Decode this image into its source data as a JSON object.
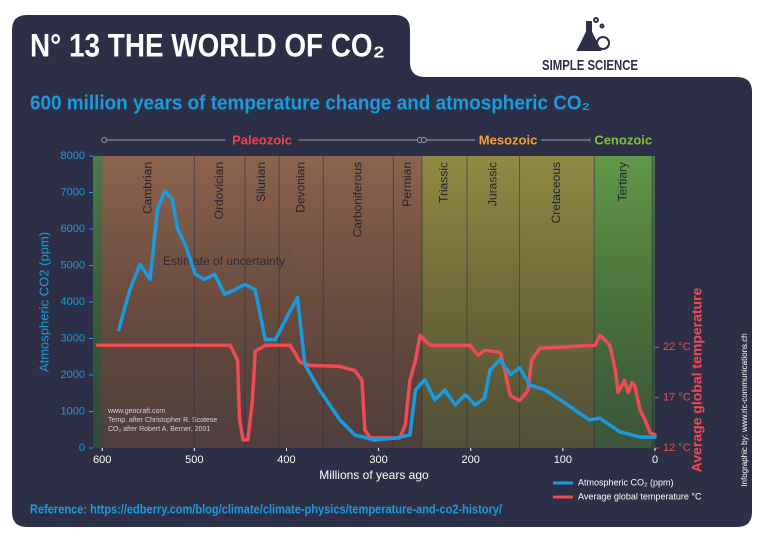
{
  "chart_data": {
    "type": "line",
    "title": "N° 13  THE WORLD OF CO₂",
    "subtitle": "600 million years of temperature change and atmospheric CO₂",
    "brand": "SIMPLE SCIENCE",
    "xlabel": "Millions of years ago",
    "ylabel": "Atmospheric CO2 (ppm)",
    "y2label": "Average global temperature",
    "xlim": [
      610,
      0
    ],
    "xticks": [
      600,
      500,
      400,
      300,
      200,
      100,
      0
    ],
    "ylim": [
      0,
      8000
    ],
    "yticks": [
      0,
      1000,
      2000,
      3000,
      4000,
      5000,
      6000,
      7000,
      8000
    ],
    "y2lim": [
      12,
      41
    ],
    "y2ticks": [
      {
        "value": 12,
        "label": "12 °C"
      },
      {
        "value": 17,
        "label": "17 °C"
      },
      {
        "value": 22,
        "label": "22 °C"
      }
    ],
    "eras": [
      {
        "name": "Paleozoic",
        "start": 600,
        "end": 253,
        "color": "#e8454f"
      },
      {
        "name": "Mesozoic",
        "start": 253,
        "end": 66,
        "color": "#f2a23a"
      },
      {
        "name": "Cenozoic",
        "start": 66,
        "end": 3,
        "color": "#7fc242"
      }
    ],
    "periods": [
      {
        "name": "Cambrian",
        "start": 600,
        "end": 500
      },
      {
        "name": "Ordovician",
        "start": 500,
        "end": 445
      },
      {
        "name": "Silurian",
        "start": 445,
        "end": 408
      },
      {
        "name": "Devonian",
        "start": 408,
        "end": 360
      },
      {
        "name": "Carboniferous",
        "start": 360,
        "end": 284
      },
      {
        "name": "Permian",
        "start": 284,
        "end": 253
      },
      {
        "name": "Triassic",
        "start": 253,
        "end": 204
      },
      {
        "name": "Jurassic",
        "start": 204,
        "end": 147
      },
      {
        "name": "Cretaceous",
        "start": 147,
        "end": 66
      },
      {
        "name": "Tertiary",
        "start": 66,
        "end": 3
      }
    ],
    "series": [
      {
        "name": "Atmospheric CO₂ (ppm)",
        "color": "#1a9be0",
        "x": [
          582,
          570,
          559,
          548,
          540,
          532,
          524,
          518,
          510,
          499,
          489,
          478,
          467,
          456,
          445,
          434,
          423,
          412,
          401,
          388,
          380,
          364,
          342,
          326,
          304,
          282,
          266,
          260,
          250,
          239,
          228,
          217,
          206,
          195,
          185,
          179,
          168,
          157,
          147,
          136,
          119,
          103,
          87,
          71,
          60,
          38,
          16,
          0
        ],
        "values": [
          3240,
          4340,
          5030,
          4620,
          6540,
          7040,
          6820,
          5990,
          5580,
          4760,
          4620,
          4760,
          4210,
          4340,
          4480,
          4340,
          2970,
          2970,
          3520,
          4120,
          2280,
          1590,
          770,
          360,
          220,
          270,
          360,
          1590,
          1870,
          1320,
          1590,
          1180,
          1460,
          1180,
          1370,
          2140,
          2420,
          2010,
          2200,
          1730,
          1590,
          1320,
          1040,
          770,
          820,
          440,
          300,
          300
        ]
      },
      {
        "name": "Average global temperature °C",
        "color": "#ee4b55",
        "axis": "y2",
        "x": [
          605,
          461,
          453,
          451,
          447,
          442,
          437,
          434,
          423,
          396,
          385,
          374,
          342,
          326,
          318,
          315,
          309,
          277,
          271,
          266,
          260,
          255,
          250,
          244,
          201,
          192,
          185,
          168,
          163,
          157,
          147,
          138,
          134,
          125,
          65,
          60,
          54,
          49,
          43,
          40,
          36,
          33,
          29,
          25,
          22,
          16,
          11,
          5,
          0
        ],
        "values": [
          22.2,
          22.2,
          20.7,
          14.8,
          12.8,
          12.8,
          16.7,
          21.6,
          22.2,
          22.2,
          20.5,
          20.2,
          20.1,
          19.7,
          18.7,
          13.8,
          13.0,
          13.0,
          14.3,
          18.7,
          20.7,
          23.2,
          22.7,
          22.2,
          22.2,
          21.2,
          21.7,
          21.5,
          19.7,
          17.2,
          16.7,
          17.7,
          20.7,
          21.9,
          22.2,
          23.2,
          22.7,
          22.2,
          19.7,
          17.5,
          18.2,
          18.7,
          17.5,
          18.5,
          18.2,
          15.7,
          14.8,
          13.5,
          13.3
        ]
      }
    ],
    "annotations": {
      "uncertainty": "Estimate of uncertainty",
      "sources": [
        "www.geocraft.com",
        "Temp. after Christopher R. Scotese",
        "CO₂ after Robert A. Berner, 2001"
      ],
      "reference": "Reference: https://edberry.com/blog/climate/climate-physics/temperature-and-co2-history/",
      "credit": "Infographic by: www.ric-communications.ch"
    }
  }
}
